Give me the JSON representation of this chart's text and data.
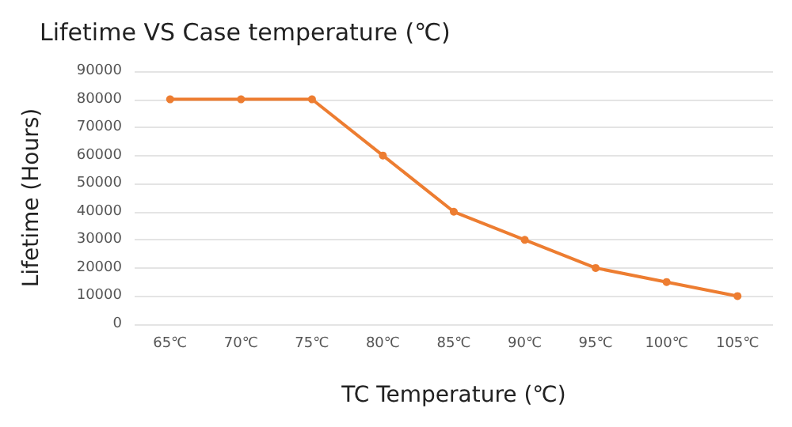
{
  "chart_data": {
    "type": "line",
    "title": "Lifetime VS Case temperature (℃)",
    "xlabel": "TC Temperature (℃)",
    "ylabel": "Lifetime (Hours)",
    "categories": [
      "65℃",
      "70℃",
      "75℃",
      "80℃",
      "85℃",
      "90℃",
      "95℃",
      "100℃",
      "105℃"
    ],
    "series": [
      {
        "color": "#ed7d31",
        "values": [
          80000,
          80000,
          80000,
          60000,
          40000,
          30000,
          20000,
          15000,
          10000
        ]
      }
    ],
    "ylim": [
      0,
      90000
    ],
    "yticks": [
      0,
      10000,
      20000,
      30000,
      40000,
      50000,
      60000,
      70000,
      80000,
      90000
    ],
    "grid": "y",
    "marker": "circle",
    "line_style": "solid"
  }
}
